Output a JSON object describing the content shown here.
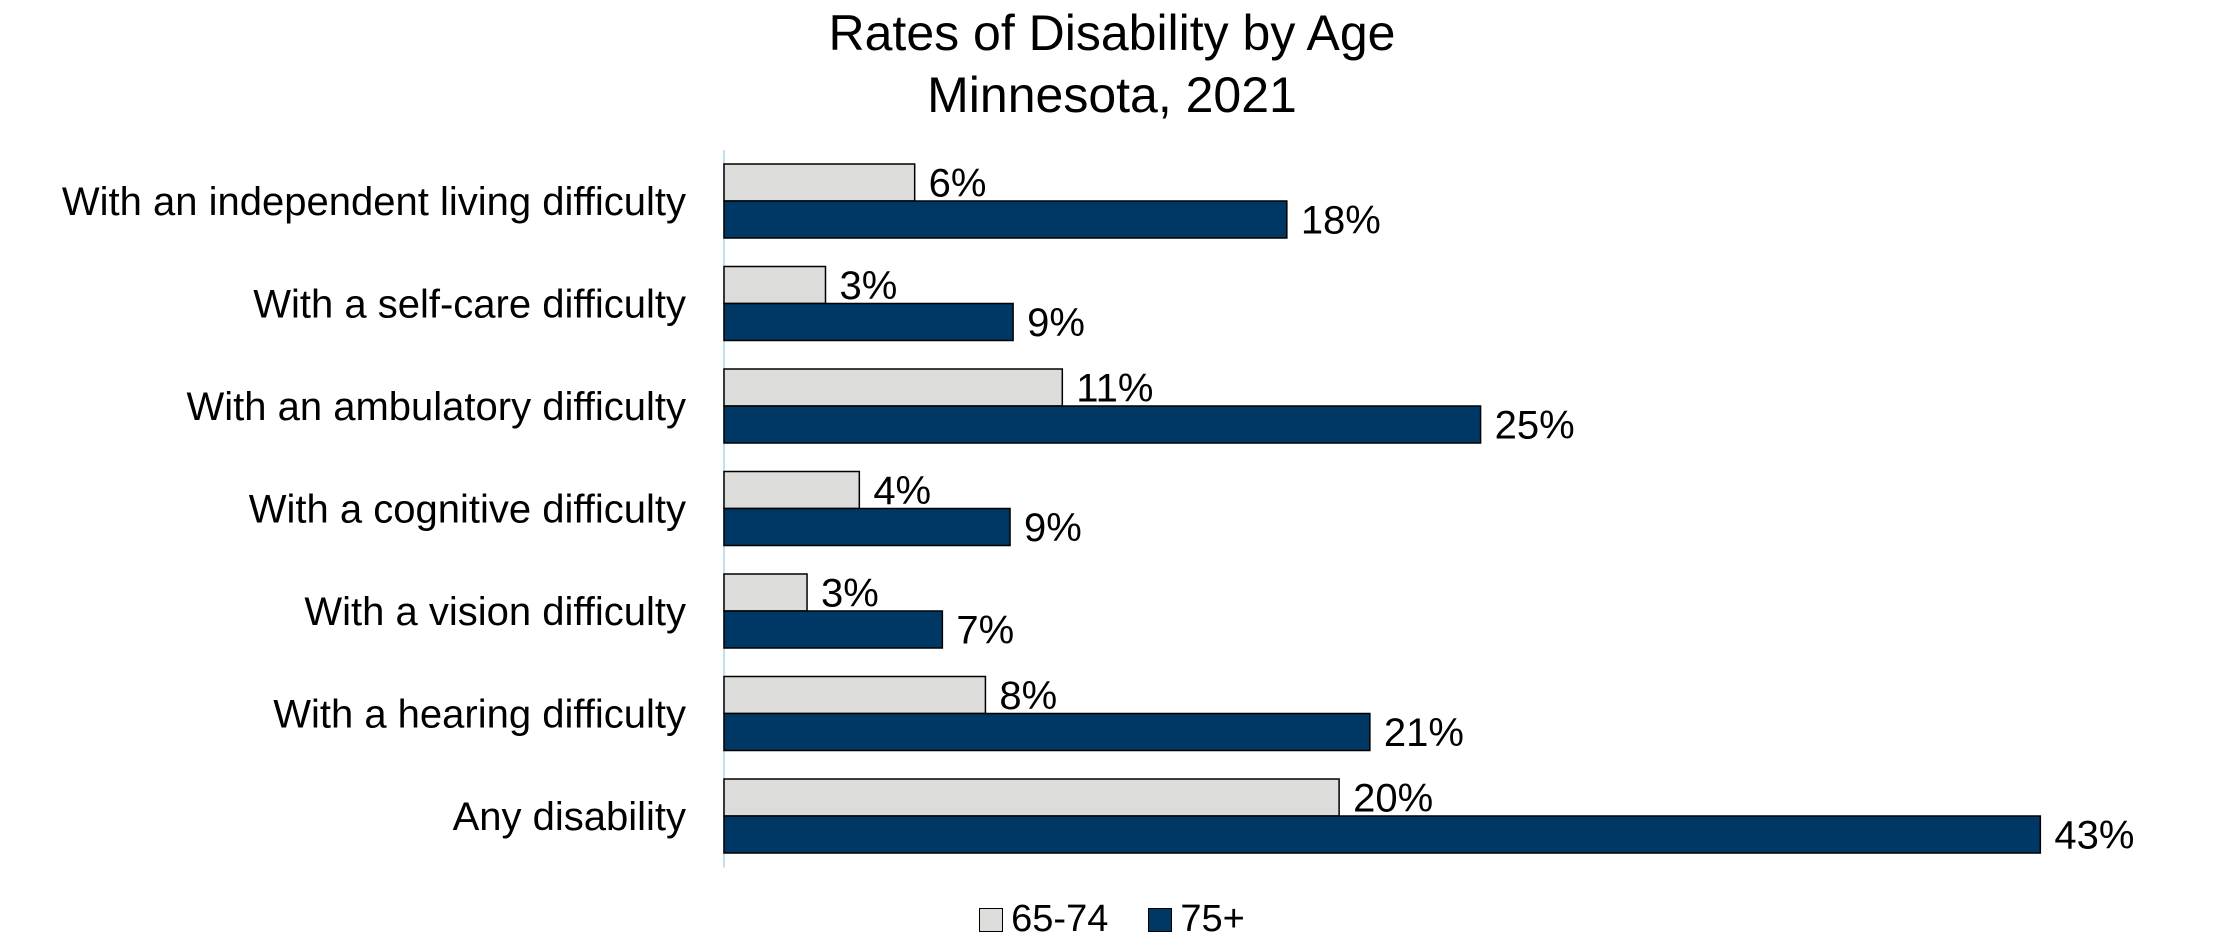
{
  "chart_data": {
    "type": "bar",
    "orientation": "horizontal",
    "title": "Rates of Disability by Age",
    "subtitle": "Minnesota, 2021",
    "xlim": [
      0,
      45
    ],
    "grid": false,
    "legend_position": "bottom",
    "categories": [
      "With an independent living difficulty",
      "With a self-care difficulty",
      "With an ambulatory difficulty",
      "With a cognitive difficulty",
      "With a vision difficulty",
      "With a hearing difficulty",
      "Any disability"
    ],
    "series": [
      {
        "name": "65-74",
        "color": "#dcdcda",
        "values": [
          6.2,
          3.3,
          11.0,
          4.4,
          2.7,
          8.5,
          20.0
        ],
        "labels": [
          "6%",
          "3%",
          "11%",
          "4%",
          "3%",
          "8%",
          "20%"
        ]
      },
      {
        "name": "75+",
        "color": "#003865",
        "values": [
          18.3,
          9.4,
          24.6,
          9.3,
          7.1,
          21.0,
          42.8
        ],
        "labels": [
          "18%",
          "9%",
          "25%",
          "9%",
          "7%",
          "21%",
          "43%"
        ]
      }
    ]
  }
}
